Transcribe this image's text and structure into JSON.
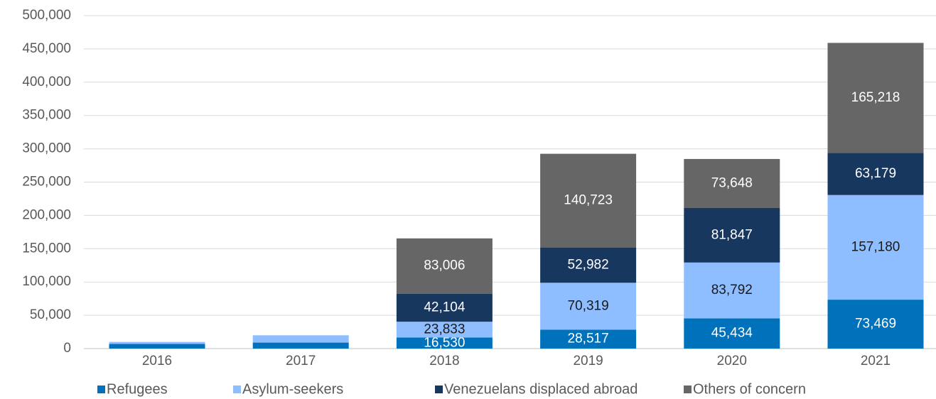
{
  "chart_data": {
    "type": "stacked_bar",
    "categories": [
      "2016",
      "2017",
      "2018",
      "2019",
      "2020",
      "2021"
    ],
    "series": [
      {
        "name": "Refugees",
        "color": "#0072bc",
        "values": [
          7000,
          9000,
          16530,
          28517,
          45434,
          73469
        ],
        "value_labels": [
          null,
          null,
          "16,530",
          "28,517",
          "45,434",
          "73,469"
        ],
        "label_color": "#ffffff"
      },
      {
        "name": "Asylum-seekers",
        "color": "#8ebeff",
        "values": [
          3000,
          11000,
          23833,
          70319,
          83792,
          157180
        ],
        "value_labels": [
          null,
          null,
          "23,833",
          "70,319",
          "83,792",
          "157,180"
        ],
        "label_color": "#1a1a1a"
      },
      {
        "name": "Venezuelans displaced abroad",
        "color": "#18375f",
        "values": [
          0,
          0,
          42104,
          52982,
          81847,
          63179
        ],
        "value_labels": [
          null,
          null,
          "42,104",
          "52,982",
          "81,847",
          "63,179"
        ],
        "label_color": "#ffffff"
      },
      {
        "name": "Others of concern",
        "color": "#666666",
        "values": [
          0,
          0,
          83006,
          140723,
          73648,
          165218
        ],
        "value_labels": [
          null,
          null,
          "83,006",
          "140,723",
          "73,648",
          "165,218"
        ],
        "label_color": "#ffffff"
      }
    ],
    "ylim": [
      0,
      500000
    ],
    "yticks": [
      0,
      {
        "value": 50000,
        "label": "50,000"
      },
      {
        "value": 100000,
        "label": "100,000"
      },
      {
        "value": 150000,
        "label": "150,000"
      },
      {
        "value": 200000,
        "label": "200,000"
      },
      {
        "value": 250000,
        "label": "250,000"
      },
      {
        "value": 300000,
        "label": "300,000"
      },
      {
        "value": 350000,
        "label": "350,000"
      },
      {
        "value": 400000,
        "label": "400,000"
      },
      {
        "value": 450000,
        "label": "450,000"
      },
      {
        "value": 500000,
        "label": "500,000"
      }
    ],
    "grid": true,
    "legend": "bottom"
  }
}
